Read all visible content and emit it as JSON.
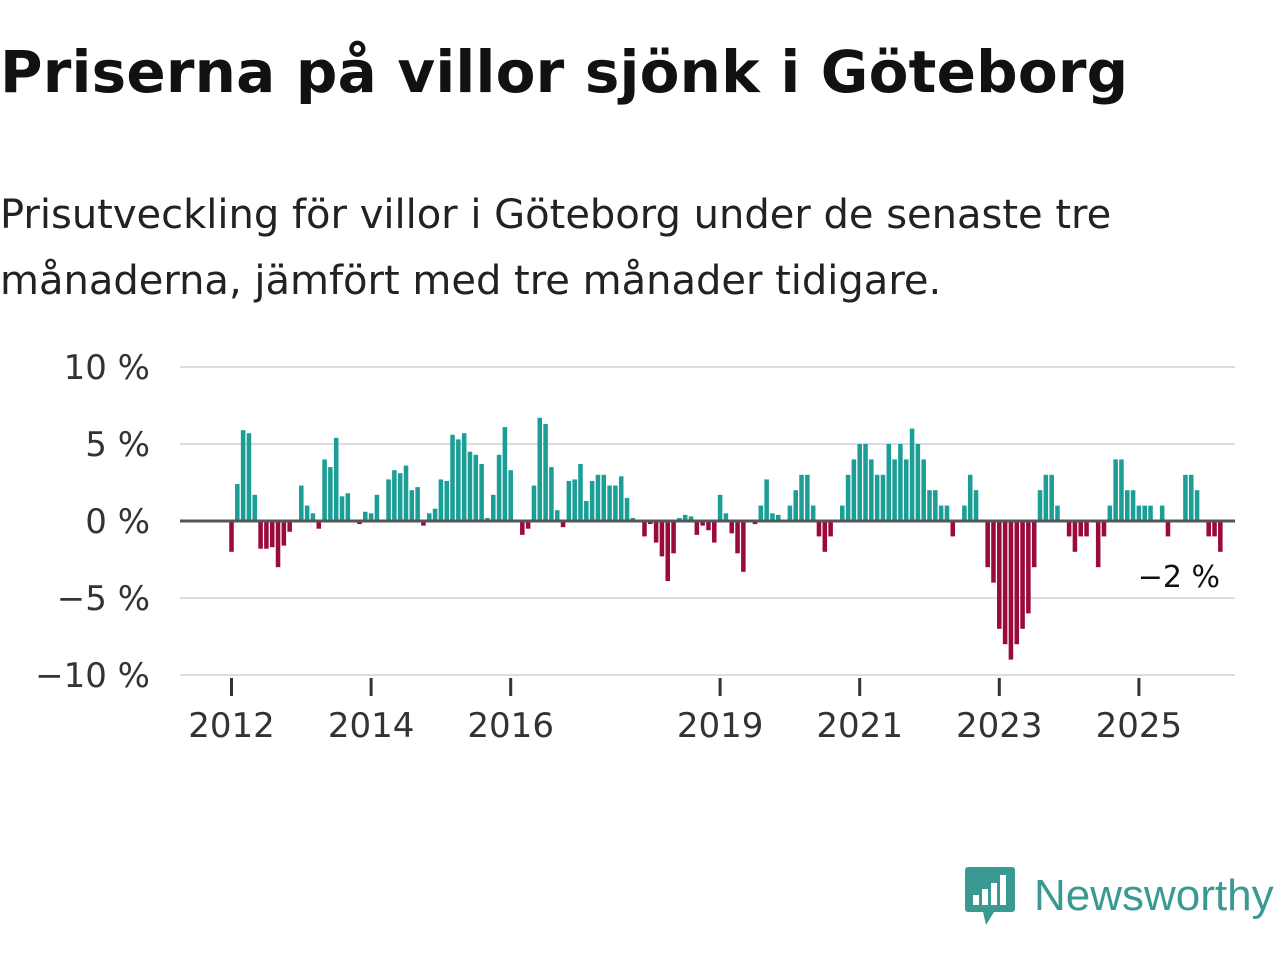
{
  "chart_data": {
    "type": "bar",
    "title": "Priserna på villor sjönk i Göteborg",
    "subtitle": "Prisutveckling för villor i Göteborg under de senaste tre månaderna, jämfört med tre månader tidigare.",
    "ylabel": "",
    "xlabel": "",
    "ylim": [
      -10,
      10
    ],
    "y_ticks": [
      {
        "value": 10,
        "label": "10 %"
      },
      {
        "value": 5,
        "label": "5 %"
      },
      {
        "value": 0,
        "label": "0 %"
      },
      {
        "value": -5,
        "label": "−5 %"
      },
      {
        "value": -10,
        "label": "−10 %"
      }
    ],
    "x_ticks": [
      {
        "year": 2012,
        "label": "2012"
      },
      {
        "year": 2014,
        "label": "2014"
      },
      {
        "year": 2016,
        "label": "2016"
      },
      {
        "year": 2019,
        "label": "2019"
      },
      {
        "year": 2021,
        "label": "2021"
      },
      {
        "year": 2023,
        "label": "2023"
      },
      {
        "year": 2025,
        "label": "2025"
      }
    ],
    "start": {
      "year": 2012,
      "month": 1
    },
    "positive_color": "#1a9e96",
    "negative_color": "#9b0a3c",
    "annotation": "−2 %",
    "values": [
      -2,
      2.4,
      5.9,
      5.7,
      1.7,
      -1.8,
      -1.8,
      -1.7,
      -3,
      -1.6,
      -0.7,
      0,
      2.3,
      1,
      0.5,
      -0.5,
      4,
      3.5,
      5.4,
      1.6,
      1.8,
      0,
      -0.2,
      0.6,
      0.5,
      1.7,
      0,
      2.7,
      3.3,
      3.1,
      3.6,
      2,
      2.2,
      -0.3,
      0.5,
      0.8,
      2.7,
      2.6,
      5.6,
      5.3,
      5.7,
      4.5,
      4.3,
      3.7,
      0.2,
      1.7,
      4.3,
      6.1,
      3.3,
      0,
      -0.9,
      -0.5,
      2.3,
      6.7,
      6.3,
      3.5,
      0.7,
      -0.4,
      2.6,
      2.7,
      3.7,
      1.3,
      2.6,
      3,
      3,
      2.3,
      2.3,
      2.9,
      1.5,
      0.2,
      -0.1,
      -1,
      -0.2,
      -1.4,
      -2.3,
      -3.9,
      -2.1,
      0.2,
      0.4,
      0.3,
      -0.9,
      -0.3,
      -0.6,
      -1.4,
      1.7,
      0.5,
      -0.8,
      -2.1,
      -3.3,
      0,
      -0.2,
      1,
      2.7,
      0.5,
      0.4,
      0,
      1,
      2,
      3,
      3,
      1,
      -1,
      -2,
      -1,
      0,
      1,
      3,
      4,
      5,
      5,
      4,
      3,
      3,
      5,
      4,
      5,
      4,
      6,
      5,
      4,
      2,
      2,
      1,
      1,
      -1,
      0,
      1,
      3,
      2,
      0,
      -3,
      -4,
      -7,
      -8,
      -9,
      -8,
      -7,
      -6,
      -3,
      2,
      3,
      3,
      1,
      0,
      -1,
      -2,
      -1,
      -1,
      0,
      -3,
      -1,
      1,
      4,
      4,
      2,
      2,
      1,
      1,
      1,
      0,
      1,
      -1,
      0,
      0,
      3,
      3,
      2,
      0,
      -1,
      -1,
      -2
    ]
  },
  "brand": {
    "name": "Newsworthy",
    "color": "#3a9a92",
    "icon": "newsworthy-logo-icon"
  }
}
